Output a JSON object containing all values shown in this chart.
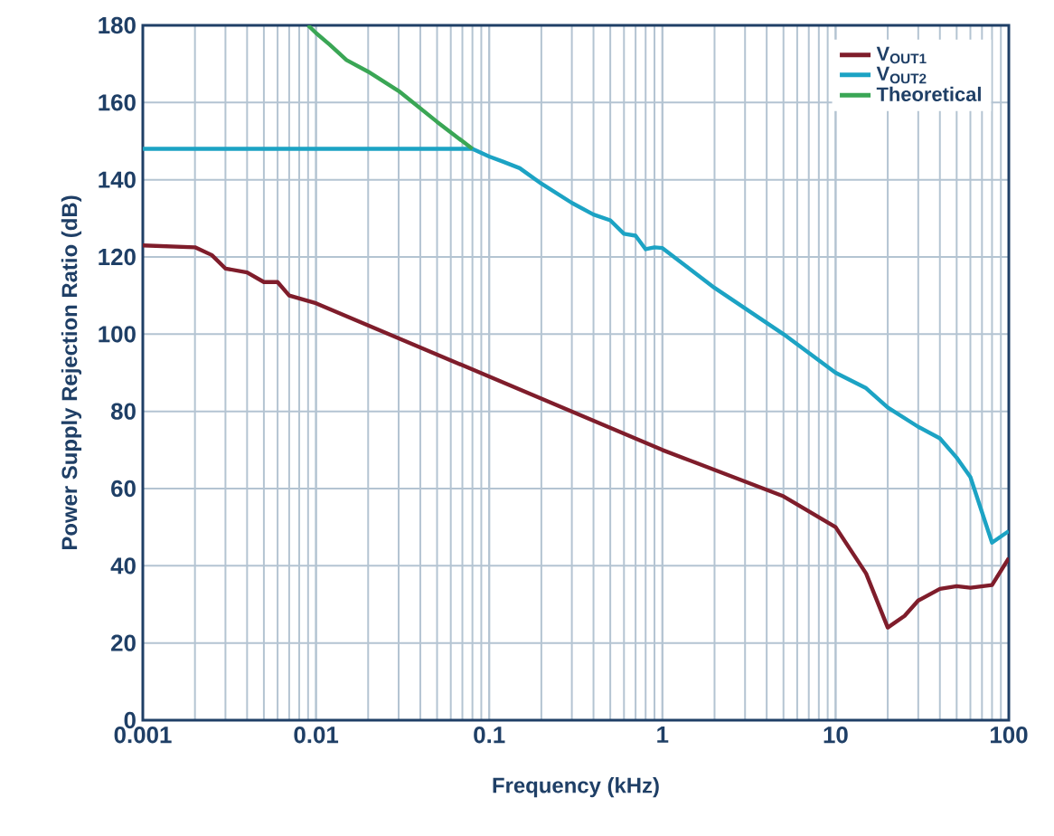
{
  "chart_data": {
    "type": "line",
    "xlabel": "Frequency (kHz)",
    "ylabel": "Power Supply Rejection Ratio (dB)",
    "log": "x",
    "xlim": [
      0.001,
      100
    ],
    "ylim": [
      0,
      180
    ],
    "xticks": [
      0.001,
      0.01,
      0.1,
      1,
      10,
      100
    ],
    "yticks": [
      0,
      20,
      40,
      60,
      80,
      100,
      120,
      140,
      160,
      180
    ],
    "grid": true,
    "legend": "top right",
    "series": [
      {
        "name": "V$_{OUT1}$",
        "color": "#7f1d2b",
        "x": [
          0.001,
          0.002,
          0.0025,
          0.003,
          0.004,
          0.005,
          0.006,
          0.007,
          0.01,
          0.1,
          1,
          5,
          10,
          15,
          20,
          25,
          30,
          40,
          50,
          60,
          80,
          100
        ],
        "values": [
          123,
          122.5,
          120.5,
          117,
          116,
          113.5,
          113.5,
          110,
          108,
          89,
          70,
          58,
          50,
          38,
          24,
          27,
          31,
          34,
          34.7,
          34.3,
          35,
          42
        ]
      },
      {
        "name": "V$_{OUT2}$",
        "color": "#1ca3c4",
        "x": [
          0.001,
          0.08,
          0.1,
          0.12,
          0.15,
          0.2,
          0.3,
          0.4,
          0.5,
          0.6,
          0.7,
          0.8,
          0.9,
          1,
          2,
          5,
          10,
          15,
          20,
          30,
          40,
          50,
          60,
          80,
          100
        ],
        "values": [
          148,
          148,
          146,
          144.7,
          143,
          139,
          134,
          131,
          129.5,
          126,
          125.5,
          122,
          122.5,
          122.3,
          112,
          100,
          90,
          86,
          81,
          76,
          73,
          68,
          63,
          46,
          49
        ]
      },
      {
        "name": "Theoretical",
        "color": "#3aa655",
        "x": [
          0.009,
          0.01,
          0.012,
          0.015,
          0.02,
          0.03,
          0.05,
          0.08
        ],
        "values": [
          180,
          178,
          175,
          171,
          168,
          163,
          155,
          148
        ]
      }
    ]
  }
}
